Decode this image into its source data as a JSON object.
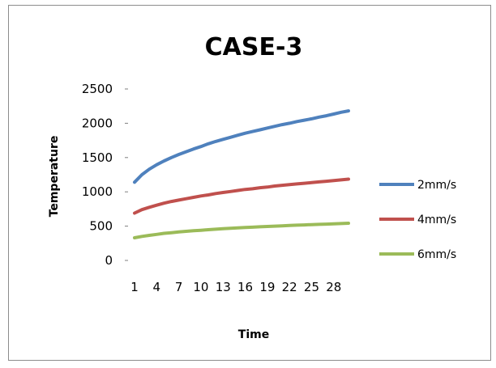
{
  "chart_data": {
    "type": "line",
    "title": "CASE-3",
    "xlabel": "Time",
    "ylabel": "Temperature",
    "ylim": [
      0,
      2500
    ],
    "yticks": [
      "0",
      "500",
      "1000",
      "1500",
      "2000",
      "2500"
    ],
    "x": [
      1,
      2,
      3,
      4,
      5,
      6,
      7,
      8,
      9,
      10,
      11,
      12,
      13,
      14,
      15,
      16,
      17,
      18,
      19,
      20,
      21,
      22,
      23,
      24,
      25,
      26,
      27,
      28,
      29,
      30
    ],
    "xtick_labels": [
      "1",
      "4",
      "7",
      "10",
      "13",
      "16",
      "19",
      "22",
      "25",
      "28"
    ],
    "xtick_values": [
      1,
      4,
      7,
      10,
      13,
      16,
      19,
      22,
      25,
      28
    ],
    "legend_position": "right",
    "grid": false,
    "series": [
      {
        "name": "2mm/s",
        "color": "#4f81bd",
        "values": [
          1140,
          1250,
          1330,
          1395,
          1450,
          1500,
          1545,
          1585,
          1625,
          1660,
          1700,
          1735,
          1765,
          1795,
          1825,
          1855,
          1880,
          1905,
          1930,
          1955,
          1980,
          2000,
          2025,
          2045,
          2065,
          2090,
          2110,
          2135,
          2160,
          2180
        ]
      },
      {
        "name": "4mm/s",
        "color": "#c0504d",
        "values": [
          690,
          740,
          775,
          805,
          835,
          860,
          880,
          900,
          920,
          940,
          955,
          975,
          990,
          1005,
          1020,
          1035,
          1045,
          1060,
          1070,
          1085,
          1095,
          1105,
          1115,
          1125,
          1135,
          1145,
          1155,
          1165,
          1175,
          1185
        ]
      },
      {
        "name": "6mm/s",
        "color": "#9bbb59",
        "values": [
          330,
          350,
          365,
          380,
          395,
          405,
          415,
          425,
          433,
          440,
          448,
          455,
          462,
          468,
          474,
          480,
          485,
          490,
          495,
          500,
          505,
          510,
          514,
          518,
          522,
          526,
          530,
          534,
          538,
          542
        ]
      }
    ]
  }
}
